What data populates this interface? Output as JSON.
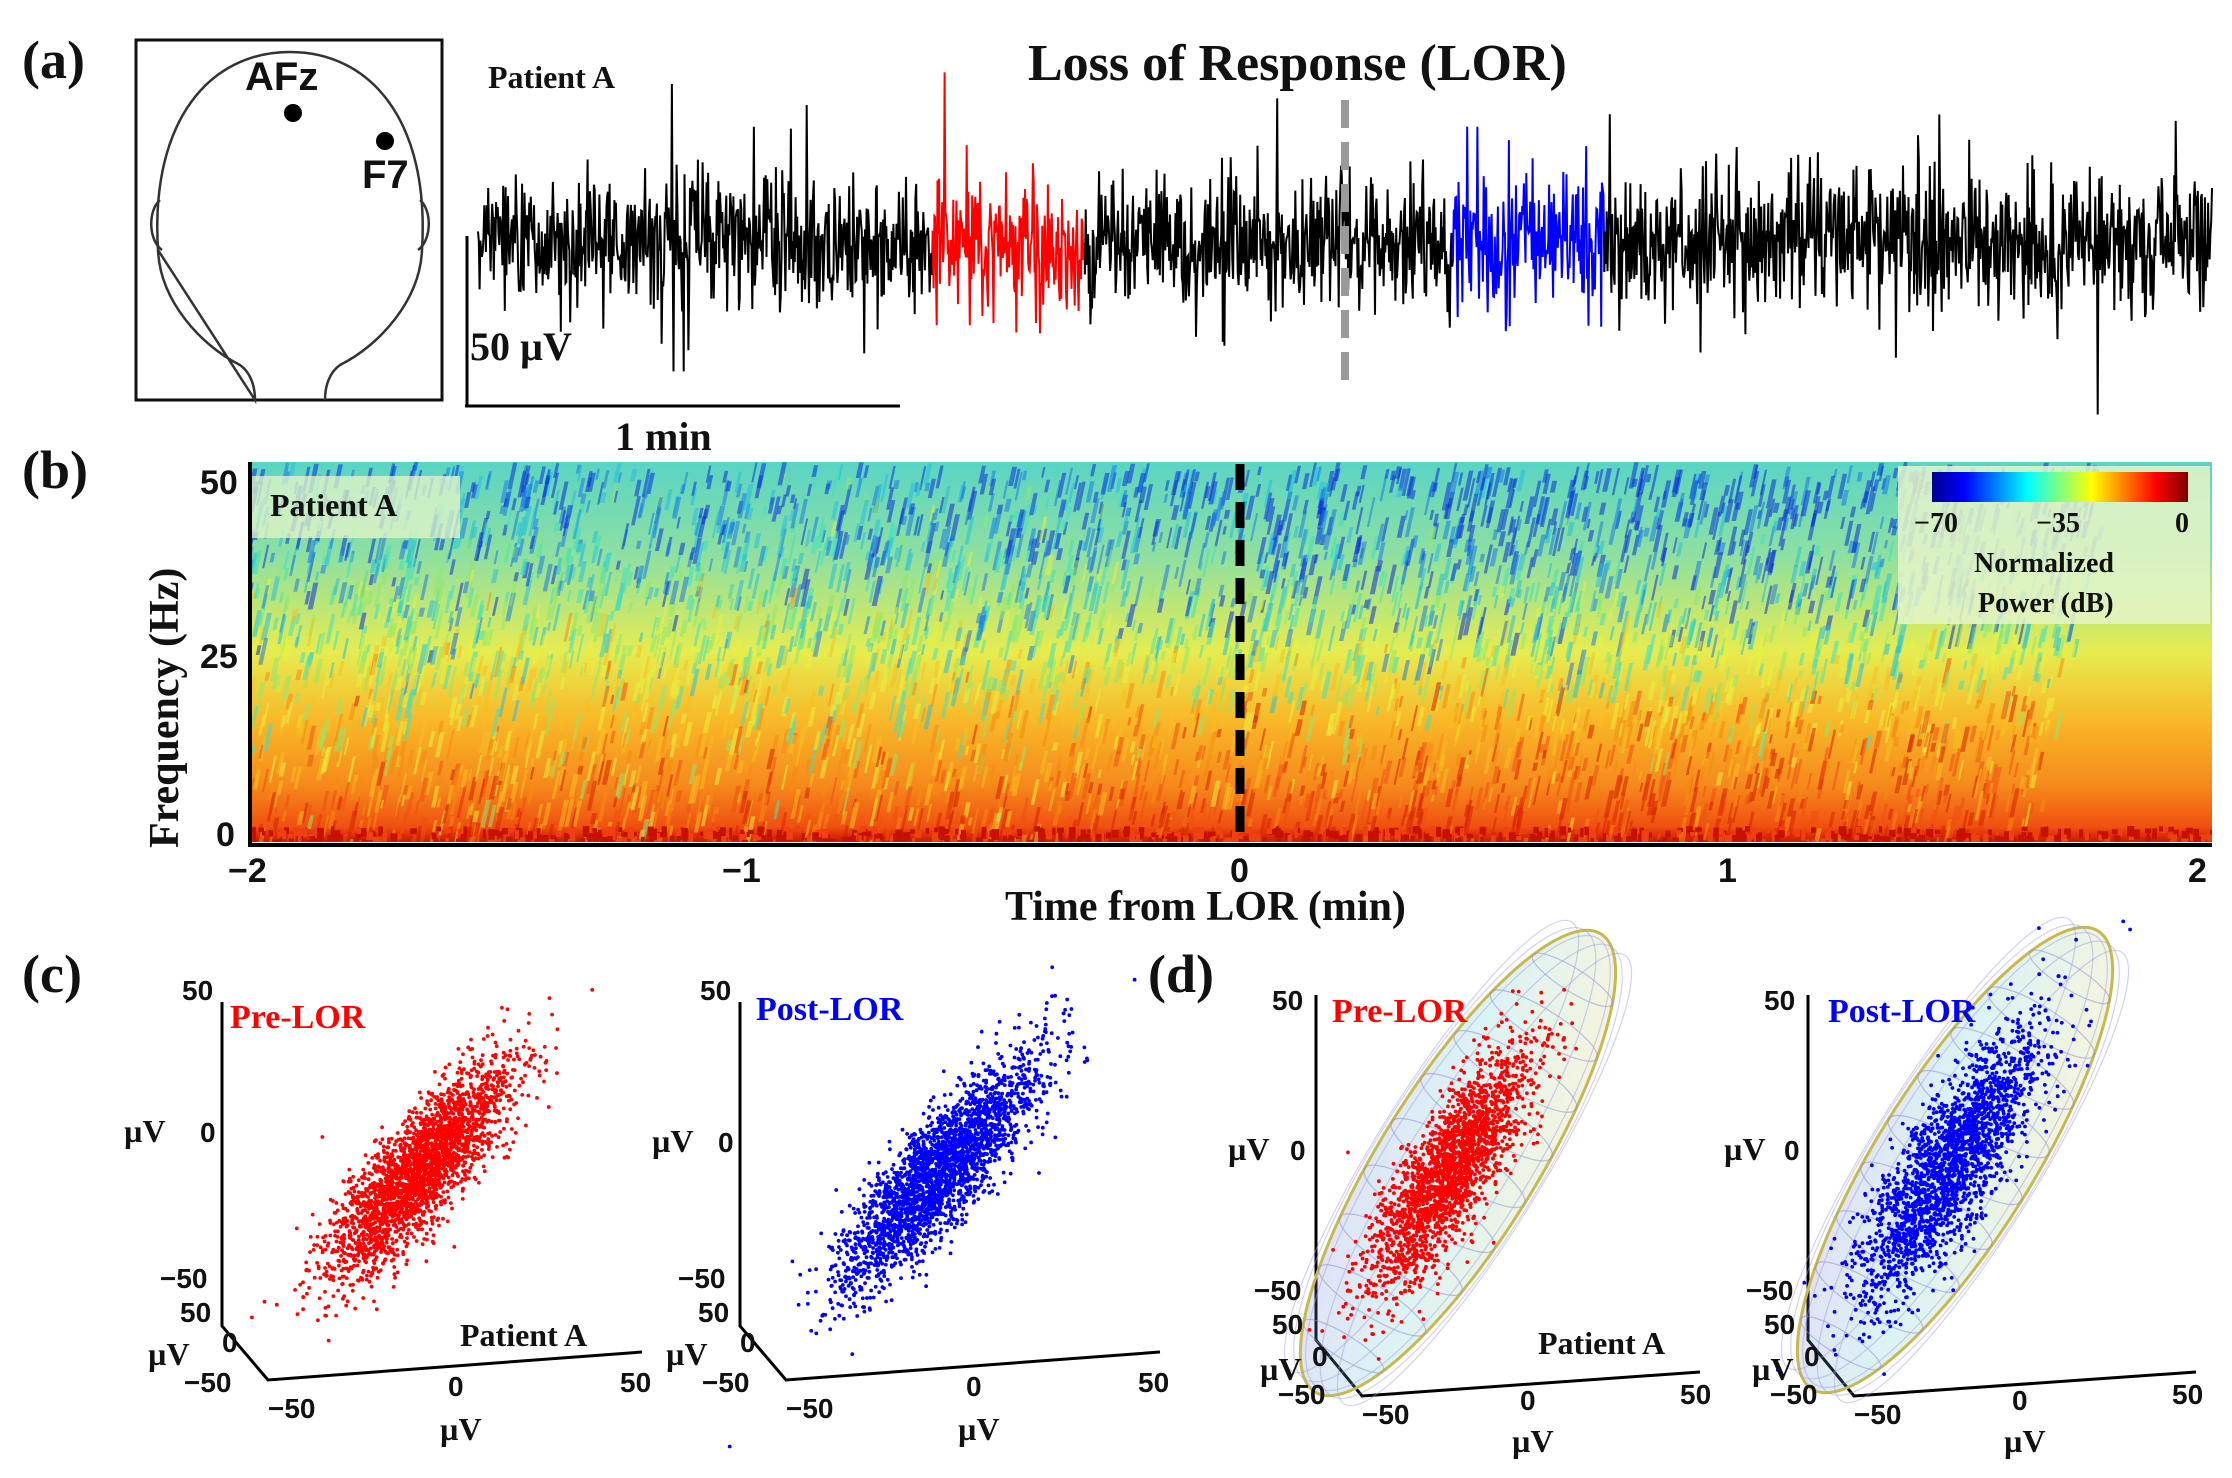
{
  "panels": {
    "a": "(a)",
    "b": "(b)",
    "c": "(c)",
    "d": "(d)"
  },
  "colors": {
    "pre": "#ff0000",
    "post": "#0000ff",
    "trace": "#000000",
    "lor_line_a": "#9a9a9a"
  },
  "head": {
    "electrodes": [
      "AFz",
      "F7"
    ]
  },
  "chart_data": [
    {
      "panel": "a",
      "type": "line",
      "title": "Loss of Response (LOR)",
      "patient_label": "Patient A",
      "scale_bar": {
        "amplitude": "50 µV",
        "time": "1 min"
      },
      "x": {
        "range_min": [
          -2,
          2
        ]
      },
      "segments": [
        {
          "name": "pre-LOR window",
          "color": "red",
          "start_min": -0.95,
          "end_min": -0.6
        },
        {
          "name": "post-LOR window",
          "color": "blue",
          "start_min": 0.25,
          "end_min": 0.6
        }
      ],
      "lor_marker_min": 0,
      "lor_marker_style": "gray dashed"
    },
    {
      "panel": "b",
      "type": "heatmap",
      "patient_label": "Patient A",
      "xlabel": "Time from LOR (min)",
      "ylabel": "Frequency (Hz)",
      "xlim": [
        -2,
        2
      ],
      "ylim": [
        0,
        50
      ],
      "xticks": [
        "−2",
        "−1",
        "0",
        "1",
        "2"
      ],
      "yticks": [
        "0",
        "25",
        "50"
      ],
      "colorbar": {
        "label_line1": "Normalized",
        "label_line2": "Power (dB)",
        "range": [
          -70,
          0
        ],
        "ticks": [
          "−70",
          "−35",
          "0"
        ],
        "colormap": "jet"
      },
      "lor_marker_min": 0
    },
    {
      "panel": "c",
      "type": "scatter",
      "subplots": [
        {
          "label": "Pre-LOR",
          "color": "red",
          "n_points_approx": 3000,
          "axis_range": [
            -50,
            50
          ],
          "axis_unit": "µV",
          "ticks": [
            "−50",
            "0",
            "50"
          ],
          "patient_label": "Patient A"
        },
        {
          "label": "Post-LOR",
          "color": "blue",
          "n_points_approx": 3000,
          "axis_range": [
            -50,
            50
          ],
          "axis_unit": "µV",
          "ticks": [
            "−50",
            "0",
            "50"
          ]
        }
      ]
    },
    {
      "panel": "d",
      "type": "scatter",
      "subplots": [
        {
          "label": "Pre-LOR",
          "color": "red",
          "ellipsoid": "covariance ellipsoid overlay",
          "axis_range": [
            -50,
            50
          ],
          "axis_unit": "µV",
          "ticks": [
            "−50",
            "0",
            "50"
          ],
          "patient_label": "Patient A"
        },
        {
          "label": "Post-LOR",
          "color": "blue",
          "ellipsoid": "covariance ellipsoid overlay",
          "axis_range": [
            -50,
            50
          ],
          "axis_unit": "µV",
          "ticks": [
            "−50",
            "0",
            "50"
          ]
        }
      ]
    }
  ]
}
